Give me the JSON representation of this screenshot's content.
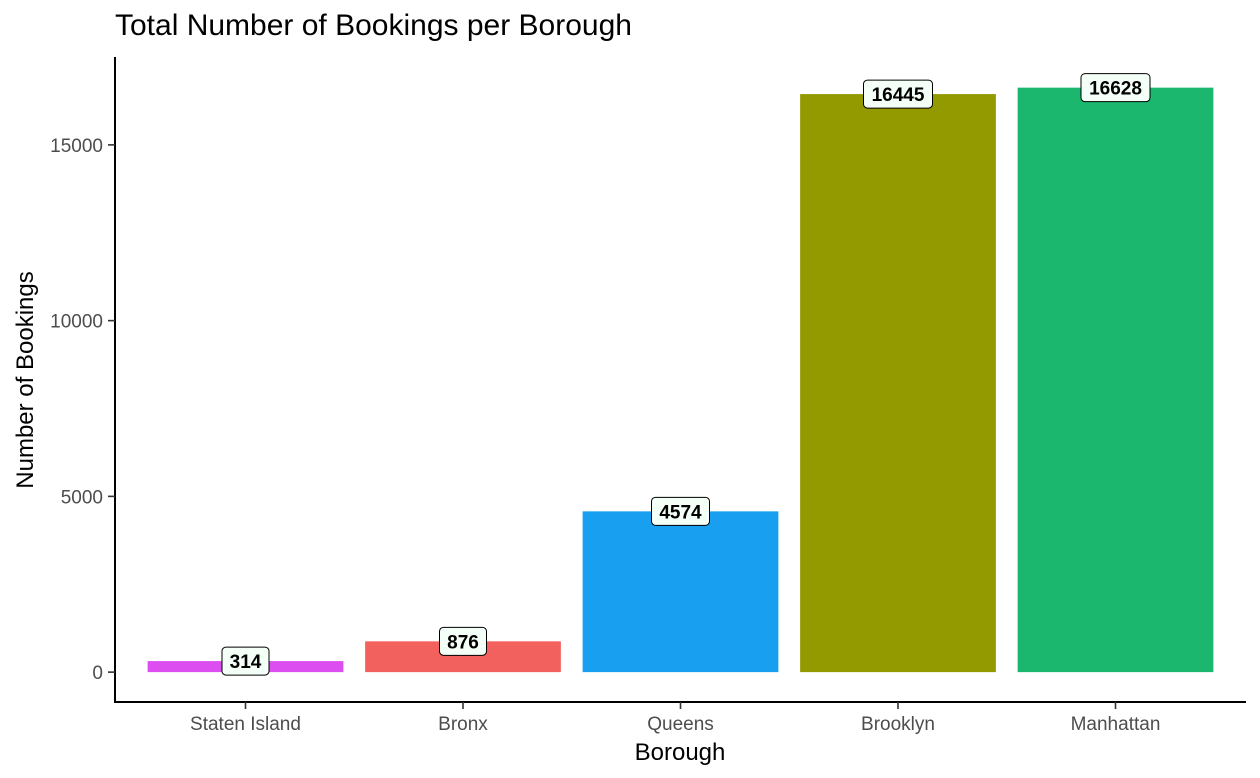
{
  "chart_data": {
    "type": "bar",
    "title": "Total Number of Bookings per Borough",
    "xlabel": "Borough",
    "ylabel": "Number of Bookings",
    "categories": [
      "Staten Island",
      "Bronx",
      "Queens",
      "Brooklyn",
      "Manhattan"
    ],
    "values": [
      314,
      876,
      4574,
      16445,
      16628
    ],
    "colors": [
      "#DC4EF0",
      "#F2615E",
      "#189FEF",
      "#939A00",
      "#1BB76E"
    ],
    "data_labels": [
      "314",
      "876",
      "4574",
      "16445",
      "16628"
    ],
    "ylim": [
      -850,
      17500
    ],
    "yticks": [
      0,
      5000,
      10000,
      15000
    ],
    "ytick_labels": [
      "0",
      "5000",
      "10000",
      "15000"
    ],
    "grid": false,
    "legend": "none"
  }
}
